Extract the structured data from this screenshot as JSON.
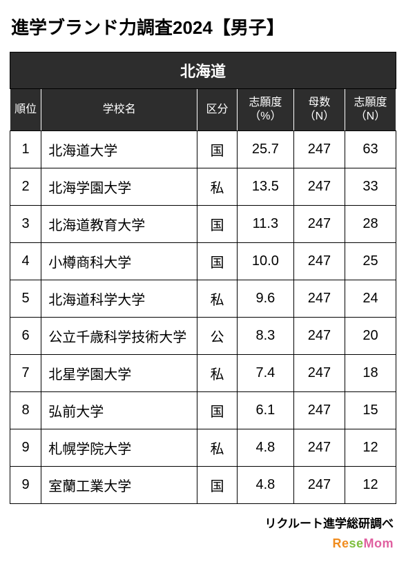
{
  "title": "進学ブランド力調査2024【男子】",
  "region": "北海道",
  "columns": {
    "rank": "順位",
    "name": "学校名",
    "kubun": "区分",
    "pct": "志願度\n（%）",
    "bosu": "母数\n（N）",
    "cnt": "志願度\n（N）"
  },
  "rows": [
    {
      "rank": "1",
      "name": "北海道大学",
      "kubun": "国",
      "pct": "25.7",
      "bosu": "247",
      "cnt": "63"
    },
    {
      "rank": "2",
      "name": "北海学園大学",
      "kubun": "私",
      "pct": "13.5",
      "bosu": "247",
      "cnt": "33"
    },
    {
      "rank": "3",
      "name": "北海道教育大学",
      "kubun": "国",
      "pct": "11.3",
      "bosu": "247",
      "cnt": "28"
    },
    {
      "rank": "4",
      "name": "小樽商科大学",
      "kubun": "国",
      "pct": "10.0",
      "bosu": "247",
      "cnt": "25"
    },
    {
      "rank": "5",
      "name": "北海道科学大学",
      "kubun": "私",
      "pct": "9.6",
      "bosu": "247",
      "cnt": "24"
    },
    {
      "rank": "6",
      "name": "公立千歳科学技術大学",
      "kubun": "公",
      "pct": "8.3",
      "bosu": "247",
      "cnt": "20"
    },
    {
      "rank": "7",
      "name": "北星学園大学",
      "kubun": "私",
      "pct": "7.4",
      "bosu": "247",
      "cnt": "18"
    },
    {
      "rank": "8",
      "name": "弘前大学",
      "kubun": "国",
      "pct": "6.1",
      "bosu": "247",
      "cnt": "15"
    },
    {
      "rank": "9",
      "name": "札幌学院大学",
      "kubun": "私",
      "pct": "4.8",
      "bosu": "247",
      "cnt": "12"
    },
    {
      "rank": "9",
      "name": "室蘭工業大学",
      "kubun": "国",
      "pct": "4.8",
      "bosu": "247",
      "cnt": "12"
    }
  ],
  "source": "リクルート進学総研調べ",
  "logo": {
    "re": "Re",
    "se": "se",
    "mom": "Mom"
  },
  "colors": {
    "header_bg": "#2d2d2d",
    "header_fg": "#ffffff",
    "border": "#000000",
    "bg": "#ffffff",
    "logo_re": "#f08c1e",
    "logo_se": "#7fbf3f",
    "logo_mom": "#e060a0"
  }
}
